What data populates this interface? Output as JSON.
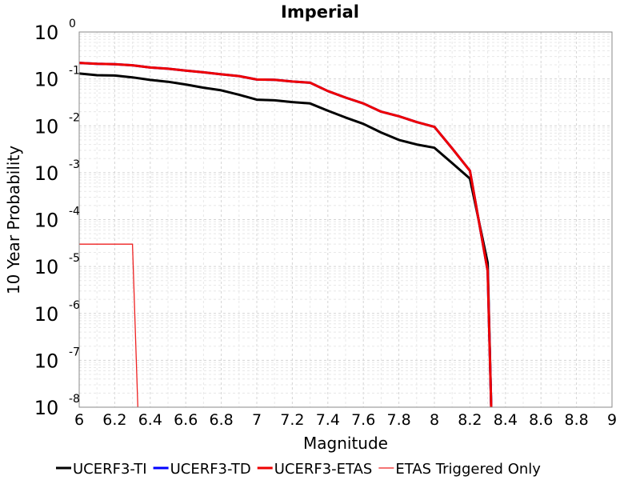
{
  "chart_data": {
    "type": "line",
    "title": "Imperial",
    "xlabel": "Magnitude",
    "ylabel": "10 Year Probability",
    "xlim": [
      6,
      9
    ],
    "ylim": [
      1e-08,
      1
    ],
    "yscale": "log",
    "grid": true,
    "legend_position": "bottom",
    "x_ticks": [
      "6",
      "6.2",
      "6.4",
      "6.6",
      "6.8",
      "7",
      "7.2",
      "7.4",
      "7.6",
      "7.8",
      "8",
      "8.2",
      "8.4",
      "8.6",
      "8.8",
      "9"
    ],
    "y_ticks": [
      {
        "base": "10",
        "exp": "0"
      },
      {
        "base": "10",
        "exp": "-1"
      },
      {
        "base": "10",
        "exp": "-2"
      },
      {
        "base": "10",
        "exp": "-3"
      },
      {
        "base": "10",
        "exp": "-4"
      },
      {
        "base": "10",
        "exp": "-5"
      },
      {
        "base": "10",
        "exp": "-6"
      },
      {
        "base": "10",
        "exp": "-7"
      },
      {
        "base": "10",
        "exp": "-8"
      }
    ],
    "series": [
      {
        "name": "UCERF3-TI",
        "color": "#000000",
        "width": 3,
        "x": [
          6.0,
          6.1,
          6.2,
          6.3,
          6.4,
          6.5,
          6.6,
          6.7,
          6.8,
          6.9,
          7.0,
          7.1,
          7.2,
          7.3,
          7.4,
          7.5,
          7.6,
          7.7,
          7.8,
          7.9,
          8.0,
          8.1,
          8.2,
          8.3,
          8.32
        ],
        "y": [
          0.13,
          0.12,
          0.118,
          0.108,
          0.095,
          0.087,
          0.076,
          0.065,
          0.057,
          0.046,
          0.036,
          0.035,
          0.032,
          0.03,
          0.021,
          0.015,
          0.011,
          0.0072,
          0.005,
          0.004,
          0.0034,
          0.0016,
          0.00075,
          1.2e-05,
          1e-08
        ]
      },
      {
        "name": "UCERF3-TD",
        "color": "#0000ff",
        "width": 3,
        "x": [
          6.0,
          6.1,
          6.2,
          6.3,
          6.4,
          6.5,
          6.6,
          6.7,
          6.8,
          6.9,
          7.0,
          7.1,
          7.2,
          7.3,
          7.4,
          7.5,
          7.6,
          7.7,
          7.8,
          7.9,
          8.0,
          8.1,
          8.2,
          8.3,
          8.32
        ],
        "y": [
          0.22,
          0.21,
          0.205,
          0.195,
          0.175,
          0.165,
          0.15,
          0.138,
          0.125,
          0.115,
          0.097,
          0.096,
          0.088,
          0.083,
          0.055,
          0.04,
          0.03,
          0.02,
          0.016,
          0.012,
          0.0095,
          0.0033,
          0.0011,
          8e-06,
          1e-08
        ]
      },
      {
        "name": "UCERF3-ETAS",
        "color": "#ee0000",
        "width": 3,
        "x": [
          6.0,
          6.1,
          6.2,
          6.3,
          6.4,
          6.5,
          6.6,
          6.7,
          6.8,
          6.9,
          7.0,
          7.1,
          7.2,
          7.3,
          7.4,
          7.5,
          7.6,
          7.7,
          7.8,
          7.9,
          8.0,
          8.1,
          8.2,
          8.3,
          8.32
        ],
        "y": [
          0.22,
          0.21,
          0.205,
          0.195,
          0.175,
          0.165,
          0.15,
          0.138,
          0.125,
          0.115,
          0.097,
          0.096,
          0.088,
          0.083,
          0.055,
          0.04,
          0.03,
          0.02,
          0.016,
          0.012,
          0.0095,
          0.0033,
          0.0011,
          8e-06,
          1e-08
        ]
      },
      {
        "name": "ETAS Triggered Only",
        "color": "#ee2222",
        "width": 1.3,
        "x": [
          6.0,
          6.3,
          6.33
        ],
        "y": [
          3e-05,
          3e-05,
          1e-08
        ]
      }
    ]
  }
}
